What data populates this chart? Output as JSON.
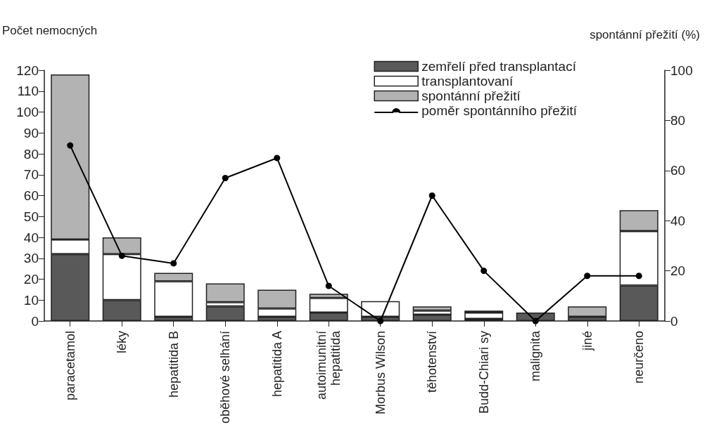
{
  "chart_data": {
    "type": "bar",
    "stacked": true,
    "ylabel": "Počet nemocných",
    "y2label": "spontánní přežití (%)",
    "categories": [
      "paracetamol",
      "léky",
      "hepatitida B",
      "oběhové selhání",
      "hepatitida A",
      "autoimunitní\nhepatitida",
      "Morbus Wilson",
      "těhotenství",
      "Budd-Chiari sy",
      "malignita",
      "jiné",
      "neurčeno"
    ],
    "series": [
      {
        "name": "zemřelí před transplantací",
        "color": "#595959",
        "values": [
          32,
          10,
          2,
          7,
          2,
          4,
          2,
          3,
          1,
          4,
          2,
          17
        ]
      },
      {
        "name": "transplantovaní",
        "color": "#ffffff",
        "values": [
          7,
          22,
          17,
          2,
          4,
          7,
          7.5,
          2,
          3,
          0,
          0,
          26
        ]
      },
      {
        "name": "spontánní přežití",
        "color": "#b3b3b3",
        "values": [
          79,
          8,
          4,
          9,
          9,
          2,
          0,
          2,
          1,
          0,
          5,
          10
        ]
      },
      {
        "name": "poměr spontánního přežití",
        "type": "line",
        "axis": "y2",
        "color": "#000000",
        "marker": "circle",
        "line_style": "solid",
        "values": [
          70,
          26,
          23,
          57,
          65,
          14,
          0,
          50,
          20,
          0,
          18,
          18
        ]
      }
    ],
    "ylim": [
      0,
      120
    ],
    "yticks": [
      0,
      10,
      20,
      30,
      40,
      50,
      60,
      70,
      80,
      90,
      100,
      110,
      120
    ],
    "y2lim": [
      0,
      100
    ],
    "y2ticks": [
      0,
      20,
      40,
      60,
      80,
      100
    ],
    "grid": false,
    "legend": "top right"
  }
}
